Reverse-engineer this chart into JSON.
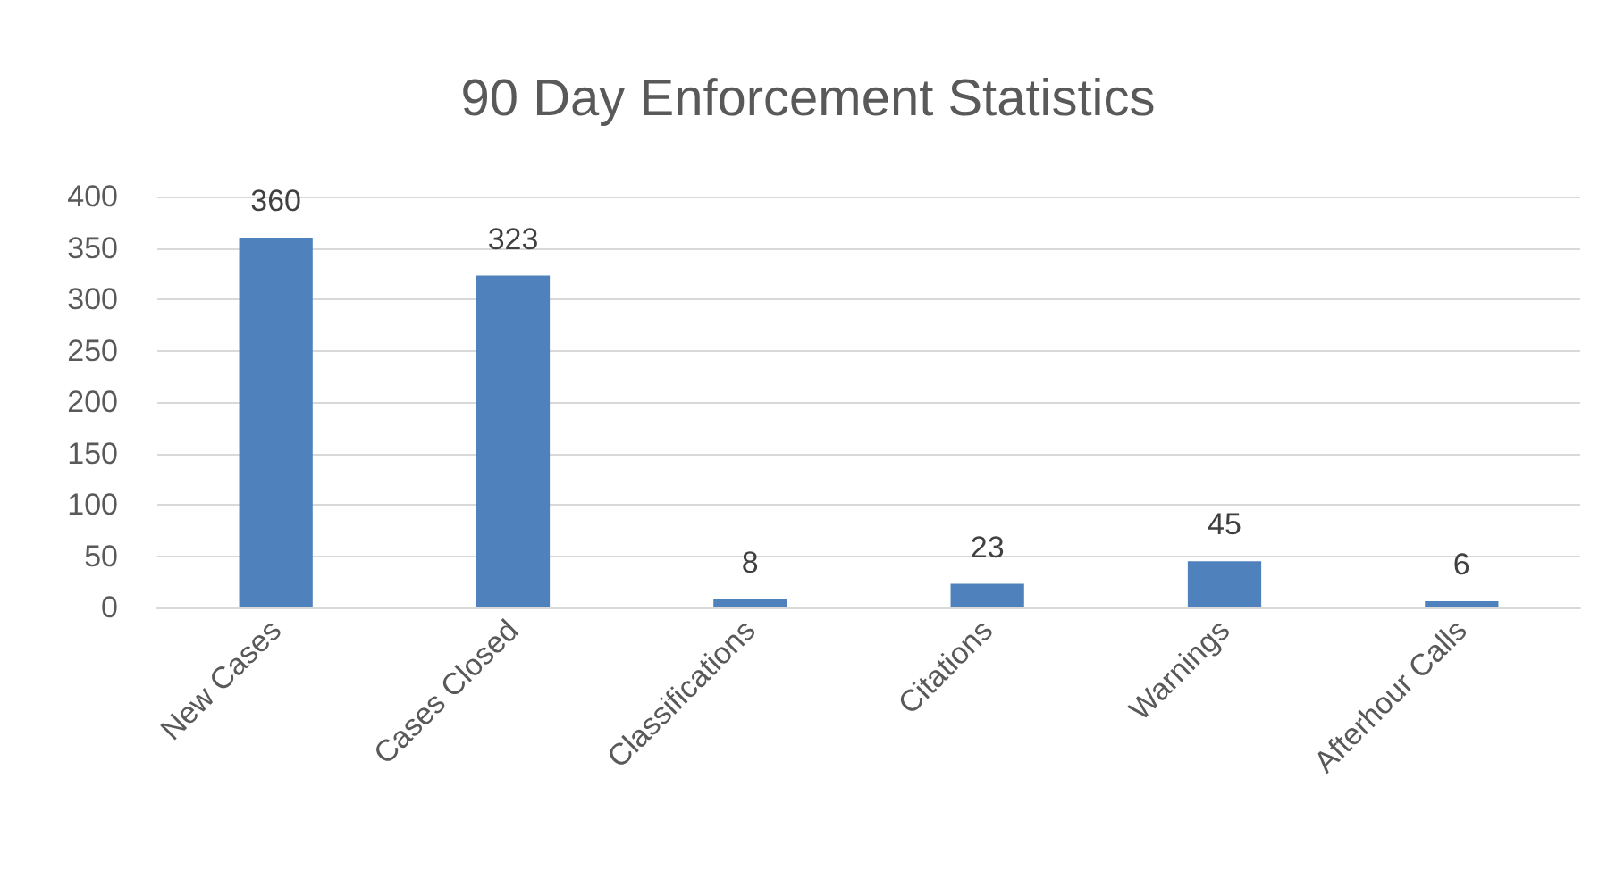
{
  "chart_data": {
    "type": "bar",
    "title": "90 Day Enforcement Statistics",
    "categories": [
      "New Cases",
      "Cases Closed",
      "Classifications",
      "Citations",
      "Warnings",
      "Afterhour Calls"
    ],
    "values": [
      360,
      323,
      8,
      23,
      45,
      6
    ],
    "color": "#4f81bd",
    "ylim": [
      0,
      400
    ],
    "yticks": [
      0,
      50,
      100,
      150,
      200,
      250,
      300,
      350,
      400
    ],
    "grid": "y",
    "data_labels": true
  }
}
